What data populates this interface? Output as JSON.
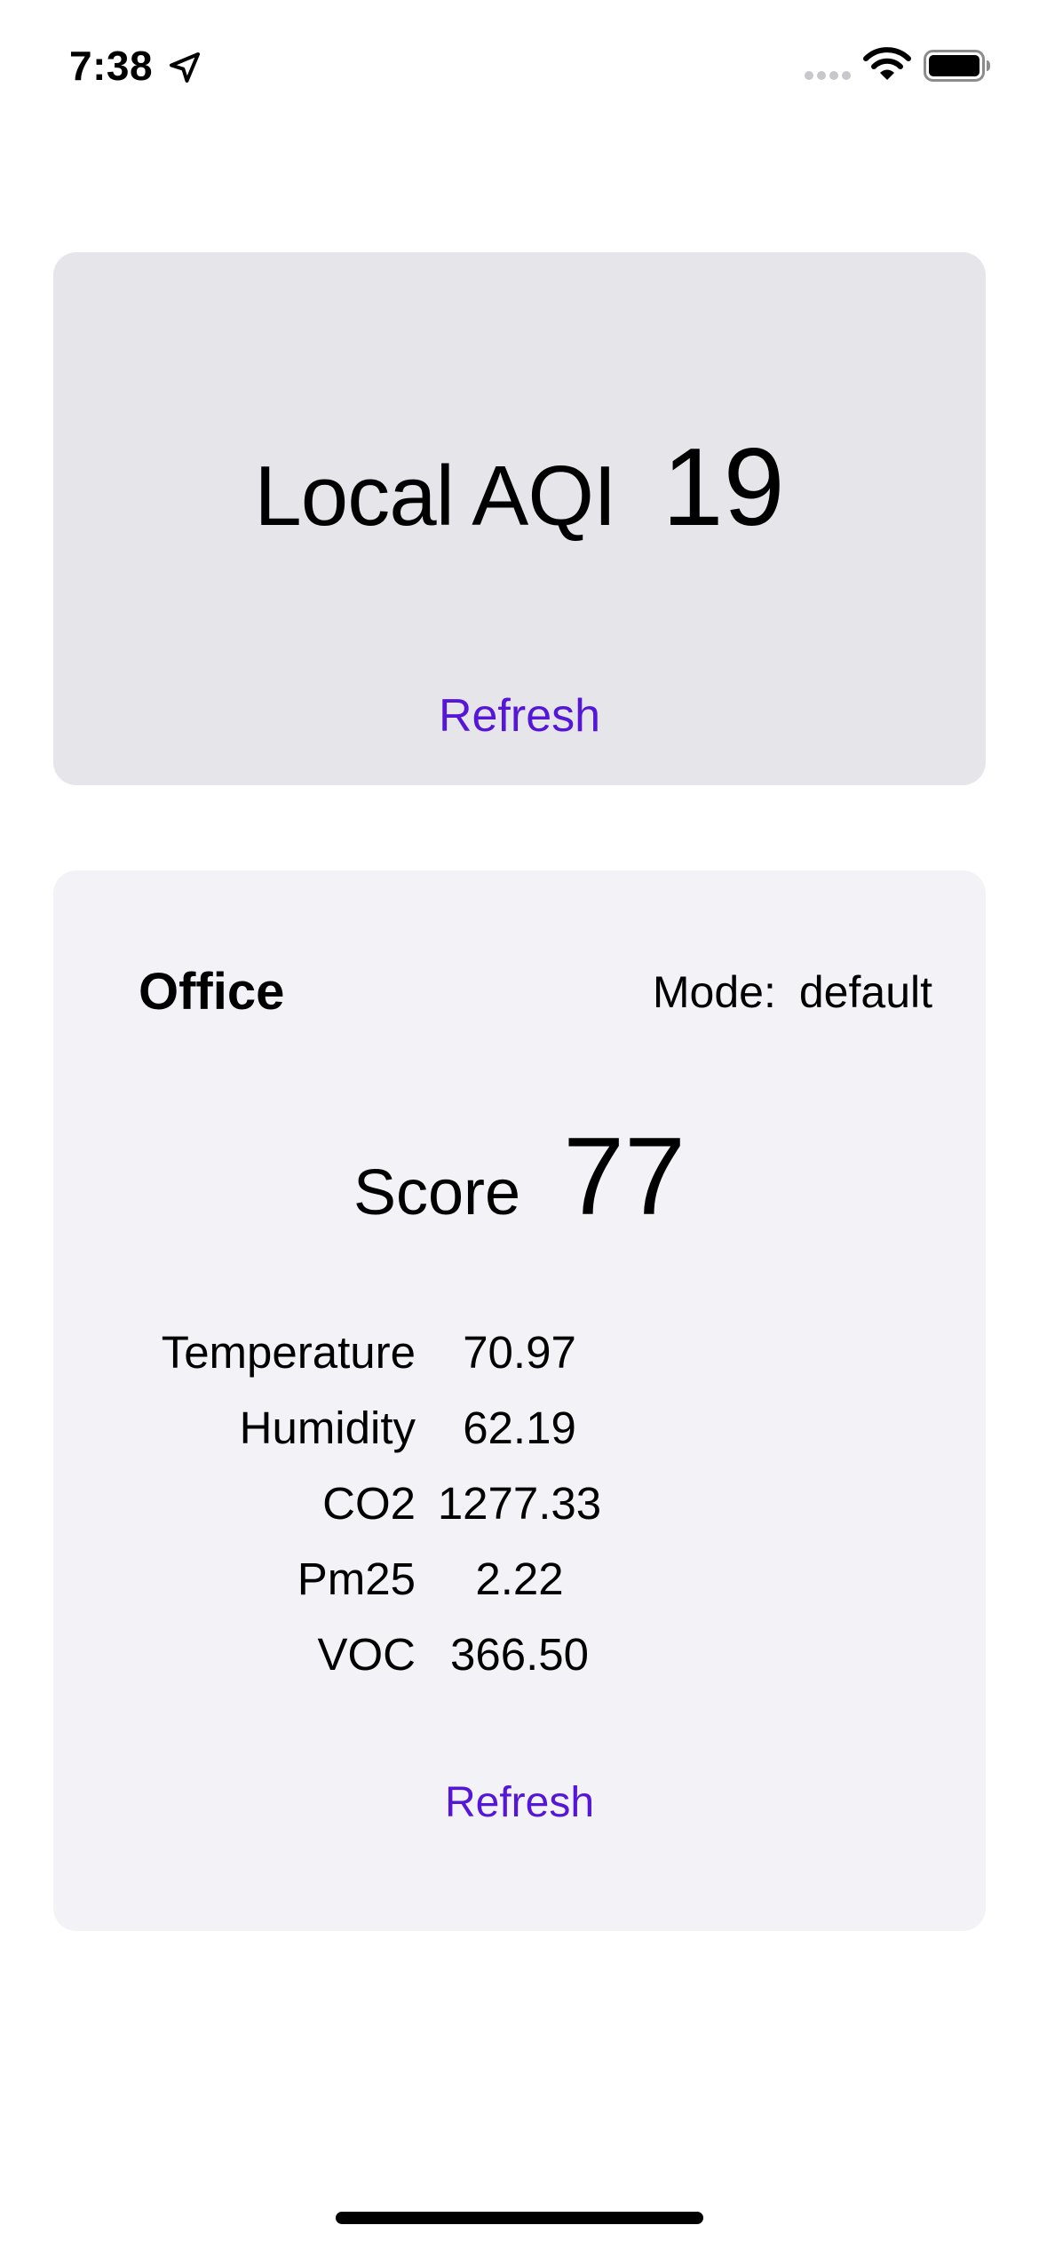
{
  "status_bar": {
    "time": "7:38",
    "icons": [
      "location-arrow-icon",
      "cellular-signal-icon",
      "wifi-icon",
      "battery-icon"
    ]
  },
  "aqi_card": {
    "label": "Local AQI",
    "value": "19",
    "refresh_label": "Refresh"
  },
  "office_card": {
    "room": "Office",
    "mode_label": "Mode:",
    "mode_value": "default",
    "score_label": "Score",
    "score_value": "77",
    "metrics": [
      {
        "label": "Temperature",
        "value": "70.97"
      },
      {
        "label": "Humidity",
        "value": "62.19"
      },
      {
        "label": "CO2",
        "value": "1277.33"
      },
      {
        "label": "Pm25",
        "value": "2.22"
      },
      {
        "label": "VOC",
        "value": "366.50"
      }
    ],
    "refresh_label": "Refresh"
  },
  "colors": {
    "accent": "#5516d8",
    "aqi_card_bg": "#e5e5ea",
    "office_card_bg": "#f2f2f7"
  }
}
